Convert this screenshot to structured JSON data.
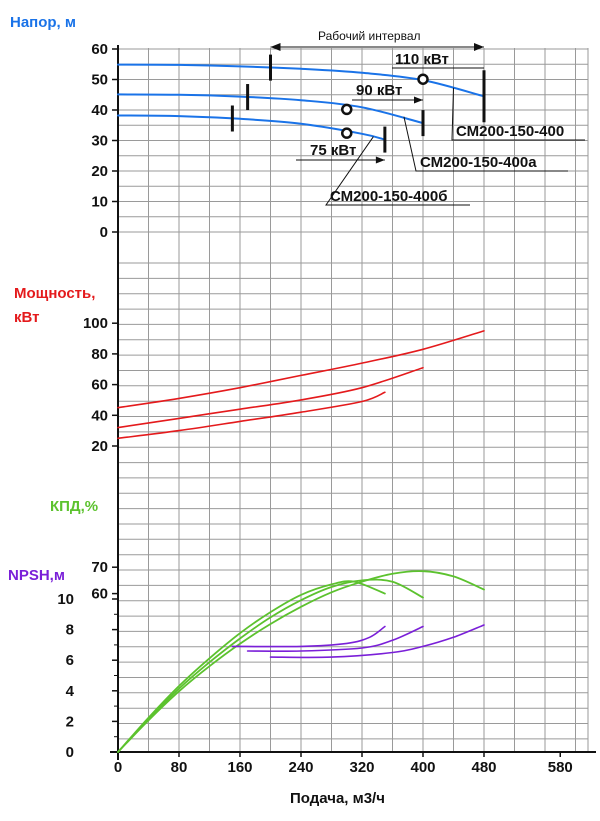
{
  "chart_data": {
    "type": "line",
    "x_axis": {
      "label": "Подача, м3/ч",
      "ticks": [
        0,
        80,
        160,
        240,
        320,
        400,
        480,
        580
      ],
      "range": [
        0,
        620
      ]
    },
    "colors": {
      "head": "#1a73e8",
      "power": "#e41a1c",
      "efficiency": "#5cc22e",
      "npsh": "#7a1fd8",
      "grid": "#9a9a9a"
    },
    "head": {
      "label": "Напор, м",
      "ticks": [
        0,
        10,
        20,
        30,
        40,
        50,
        60
      ],
      "range": [
        0,
        60
      ],
      "working_interval_label": "Рабочий интервал",
      "series": [
        {
          "name": "СМ200-150-400",
          "power_label": "110 кВт",
          "x": [
            0,
            80,
            160,
            240,
            320,
            400,
            480
          ],
          "y": [
            54.9,
            54.8,
            54.3,
            53.5,
            52.2,
            49.8,
            44.5
          ],
          "rated_point": [
            400,
            50.1
          ],
          "interval": [
            200,
            480
          ]
        },
        {
          "name": "СМ200-150-400а",
          "power_label": "90 кВт",
          "x": [
            0,
            80,
            160,
            240,
            320,
            400
          ],
          "y": [
            45.1,
            45.0,
            44.4,
            43.2,
            40.9,
            35.7
          ],
          "rated_point": [
            300,
            40.2
          ],
          "interval": [
            170,
            400
          ]
        },
        {
          "name": "СМ200-150-400б",
          "power_label": "75 кВт",
          "x": [
            0,
            80,
            160,
            240,
            320,
            350
          ],
          "y": [
            38.2,
            38.0,
            37.1,
            35.5,
            32.2,
            30.3
          ],
          "rated_point": [
            300,
            32.4
          ],
          "interval": [
            150,
            350
          ]
        }
      ]
    },
    "power": {
      "label": [
        "Мощность,",
        "кВт"
      ],
      "ticks": [
        20,
        40,
        60,
        80,
        100
      ],
      "range": [
        20,
        100
      ],
      "series": [
        {
          "name": "СМ200-150-400",
          "x": [
            0,
            80,
            160,
            240,
            320,
            400,
            480
          ],
          "y": [
            45,
            51,
            58,
            66,
            74,
            83,
            95
          ]
        },
        {
          "name": "СМ200-150-400а",
          "x": [
            0,
            80,
            160,
            240,
            320,
            400
          ],
          "y": [
            32,
            38,
            44,
            50,
            58,
            71
          ]
        },
        {
          "name": "СМ200-150-400б",
          "x": [
            0,
            80,
            160,
            240,
            320,
            350
          ],
          "y": [
            25,
            30,
            36,
            42,
            49,
            55
          ]
        }
      ]
    },
    "efficiency": {
      "label": "КПД,%",
      "ticks": [
        60,
        70
      ],
      "range": [
        0,
        70
      ],
      "series": [
        {
          "name": "СМ200-150-400",
          "x": [
            0,
            40,
            80,
            120,
            160,
            200,
            240,
            280,
            320,
            360,
            400,
            440,
            480
          ],
          "y": [
            0,
            12,
            23,
            32.5,
            41,
            48.5,
            55,
            60.5,
            64.5,
            67.5,
            68.5,
            66.5,
            61.5
          ]
        },
        {
          "name": "СМ200-150-400а",
          "x": [
            0,
            40,
            80,
            120,
            160,
            200,
            240,
            280,
            320,
            360,
            400
          ],
          "y": [
            0,
            12.5,
            24,
            34,
            43,
            51,
            57.5,
            62.5,
            65,
            64.5,
            58.5
          ]
        },
        {
          "name": "СМ200-150-400б",
          "x": [
            0,
            40,
            80,
            120,
            160,
            200,
            240,
            280,
            310,
            350
          ],
          "y": [
            0,
            13,
            25,
            35.5,
            45,
            53,
            59.5,
            63.5,
            64.5,
            60
          ]
        }
      ]
    },
    "npsh": {
      "label": "NPSH,м",
      "ticks": [
        0,
        2,
        4,
        6,
        8,
        10
      ],
      "range": [
        0,
        10
      ],
      "series": [
        {
          "name": "СМ200-150-400",
          "x": [
            200,
            280,
            360,
            400,
            440,
            480
          ],
          "y": [
            6.2,
            6.2,
            6.5,
            6.9,
            7.5,
            8.3
          ]
        },
        {
          "name": "СМ200-150-400а",
          "x": [
            170,
            240,
            320,
            360,
            400
          ],
          "y": [
            6.6,
            6.6,
            6.8,
            7.3,
            8.2
          ]
        },
        {
          "name": "СМ200-150-400б",
          "x": [
            150,
            240,
            300,
            330,
            350
          ],
          "y": [
            6.9,
            6.9,
            7.1,
            7.5,
            8.2
          ]
        }
      ]
    }
  }
}
